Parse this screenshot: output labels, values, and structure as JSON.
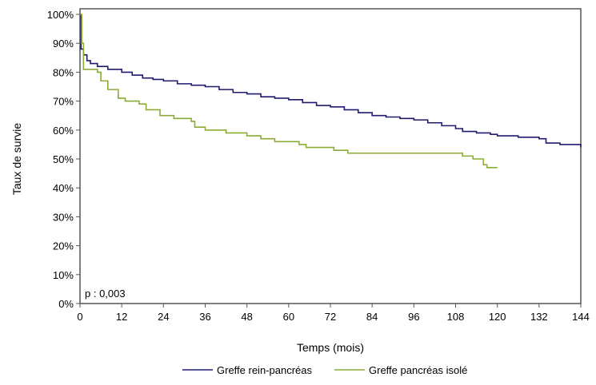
{
  "chart_data": {
    "type": "line",
    "step": true,
    "xlabel": "Temps (mois)",
    "ylabel": "Taux de survie",
    "xlim": [
      0,
      144
    ],
    "ylim": [
      0,
      100
    ],
    "xticks": [
      0,
      12,
      24,
      36,
      48,
      60,
      72,
      84,
      96,
      108,
      120,
      132,
      144
    ],
    "yticks": [
      "0%",
      "10%",
      "20%",
      "30%",
      "40%",
      "50%",
      "60%",
      "70%",
      "80%",
      "90%",
      "100%"
    ],
    "grid": false,
    "legend_position": "bottom",
    "annotation": "p : 0,003",
    "series": [
      {
        "name": "Greffe rein-pancréas",
        "color": "#1f1a6e",
        "x": [
          0,
          0.3,
          1,
          2,
          3,
          5,
          8,
          12,
          15,
          18,
          21,
          24,
          28,
          32,
          36,
          40,
          44,
          48,
          52,
          56,
          60,
          64,
          68,
          72,
          76,
          80,
          84,
          88,
          92,
          96,
          100,
          104,
          108,
          110,
          114,
          118,
          120,
          126,
          132,
          134,
          138,
          144
        ],
        "y": [
          100,
          88,
          86,
          84,
          83,
          82,
          81,
          80,
          79,
          78,
          77.5,
          77,
          76,
          75.5,
          75,
          74,
          73,
          72.5,
          71.5,
          71,
          70.5,
          69.5,
          68.5,
          68,
          67,
          66,
          65,
          64.5,
          64,
          63.5,
          62.5,
          61.5,
          60.5,
          59.5,
          59,
          58.5,
          58,
          57.5,
          57,
          55.5,
          55,
          54
        ]
      },
      {
        "name": "Greffe pancréas isolé",
        "color": "#8bab34",
        "x": [
          0,
          0.5,
          1,
          5,
          6,
          8,
          11,
          13,
          17,
          19,
          23,
          27,
          32,
          33,
          36,
          42,
          48,
          52,
          56,
          63,
          65,
          72,
          73,
          77,
          107,
          110,
          113,
          115,
          116,
          117,
          120
        ],
        "y": [
          100,
          90,
          81,
          80,
          77,
          74,
          71,
          70,
          69,
          67,
          65,
          64,
          63,
          61,
          60,
          59,
          58,
          57,
          56,
          55,
          54,
          54,
          53,
          52,
          52,
          51,
          50,
          50,
          48,
          47,
          47
        ]
      }
    ]
  }
}
